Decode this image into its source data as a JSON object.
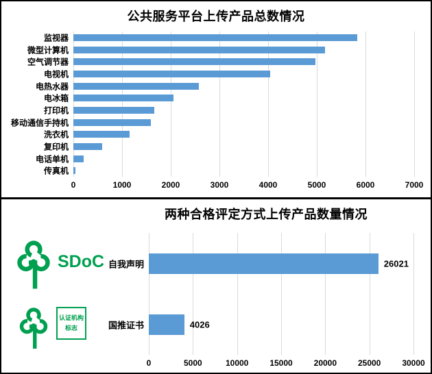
{
  "colors": {
    "bar_blue": "#5B9BD5",
    "gridline": "#D9D9D9",
    "logo_green": "#00A050",
    "text": "#000000"
  },
  "chart_data": [
    {
      "type": "bar",
      "orientation": "horizontal",
      "title": "公共服务平台上传产品总数情况",
      "categories": [
        "监视器",
        "微型计算机",
        "空气调节器",
        "电视机",
        "电热水器",
        "电冰箱",
        "打印机",
        "移动通信手持机",
        "洗衣机",
        "复印机",
        "电话单机",
        "传真机"
      ],
      "values": [
        5830,
        5170,
        4970,
        4040,
        2580,
        2060,
        1660,
        1590,
        1160,
        590,
        210,
        40
      ],
      "xlim": [
        0,
        7000
      ],
      "xticks": [
        0,
        1000,
        2000,
        3000,
        4000,
        5000,
        6000,
        7000
      ],
      "grid": true,
      "legend": false,
      "data_labels": null
    },
    {
      "type": "bar",
      "orientation": "horizontal",
      "title": "两种合格评定方式上传产品数量情况",
      "categories": [
        "自我声明",
        "国推证书"
      ],
      "values": [
        26021,
        4026
      ],
      "data_labels": [
        "26021",
        "4026"
      ],
      "xlim": [
        0,
        30000
      ],
      "xticks": [
        0,
        5000,
        10000,
        15000,
        20000,
        25000,
        30000
      ],
      "grid": true,
      "legend": false
    }
  ],
  "logos": {
    "sdoc_label": "SDoC",
    "cert_box_line1": "认证机构",
    "cert_box_line2": "标志"
  }
}
